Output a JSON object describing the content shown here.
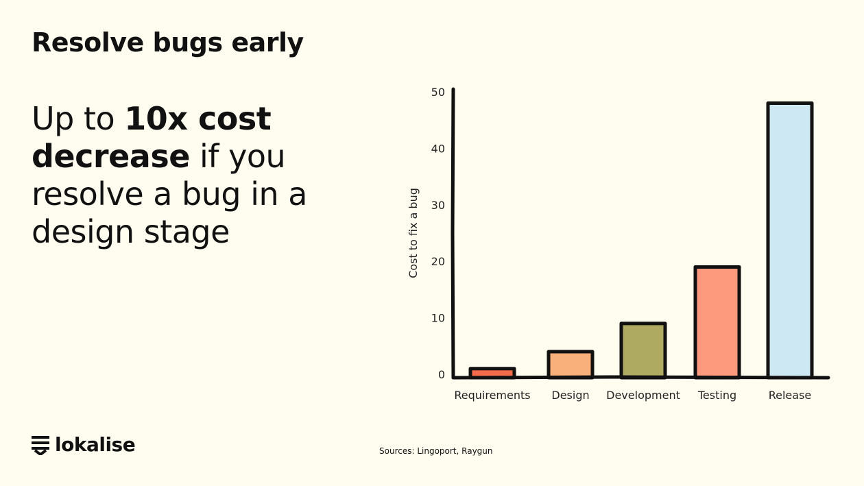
{
  "title": "Resolve bugs early",
  "lead": {
    "pre": "Up to ",
    "bold": "10x cost decrease",
    "post": " if you resolve a bug in a design stage"
  },
  "logo": {
    "text": "lokalise"
  },
  "sources": "Sources: Lingoport, Raygun",
  "chart_data": {
    "type": "bar",
    "title": "",
    "xlabel": "",
    "ylabel": "Cost to fix a bug",
    "ylim": [
      0,
      50
    ],
    "yticks": [
      "0",
      "10",
      "20",
      "30",
      "40",
      "50"
    ],
    "grid": false,
    "categories": [
      "Requirements",
      "Design",
      "Development",
      "Testing",
      "Release"
    ],
    "values": [
      1,
      4,
      9,
      19,
      48
    ],
    "colors": [
      "#f26b4a",
      "#f9b07a",
      "#aeaa62",
      "#fd9a7e",
      "#cde8f2"
    ]
  }
}
